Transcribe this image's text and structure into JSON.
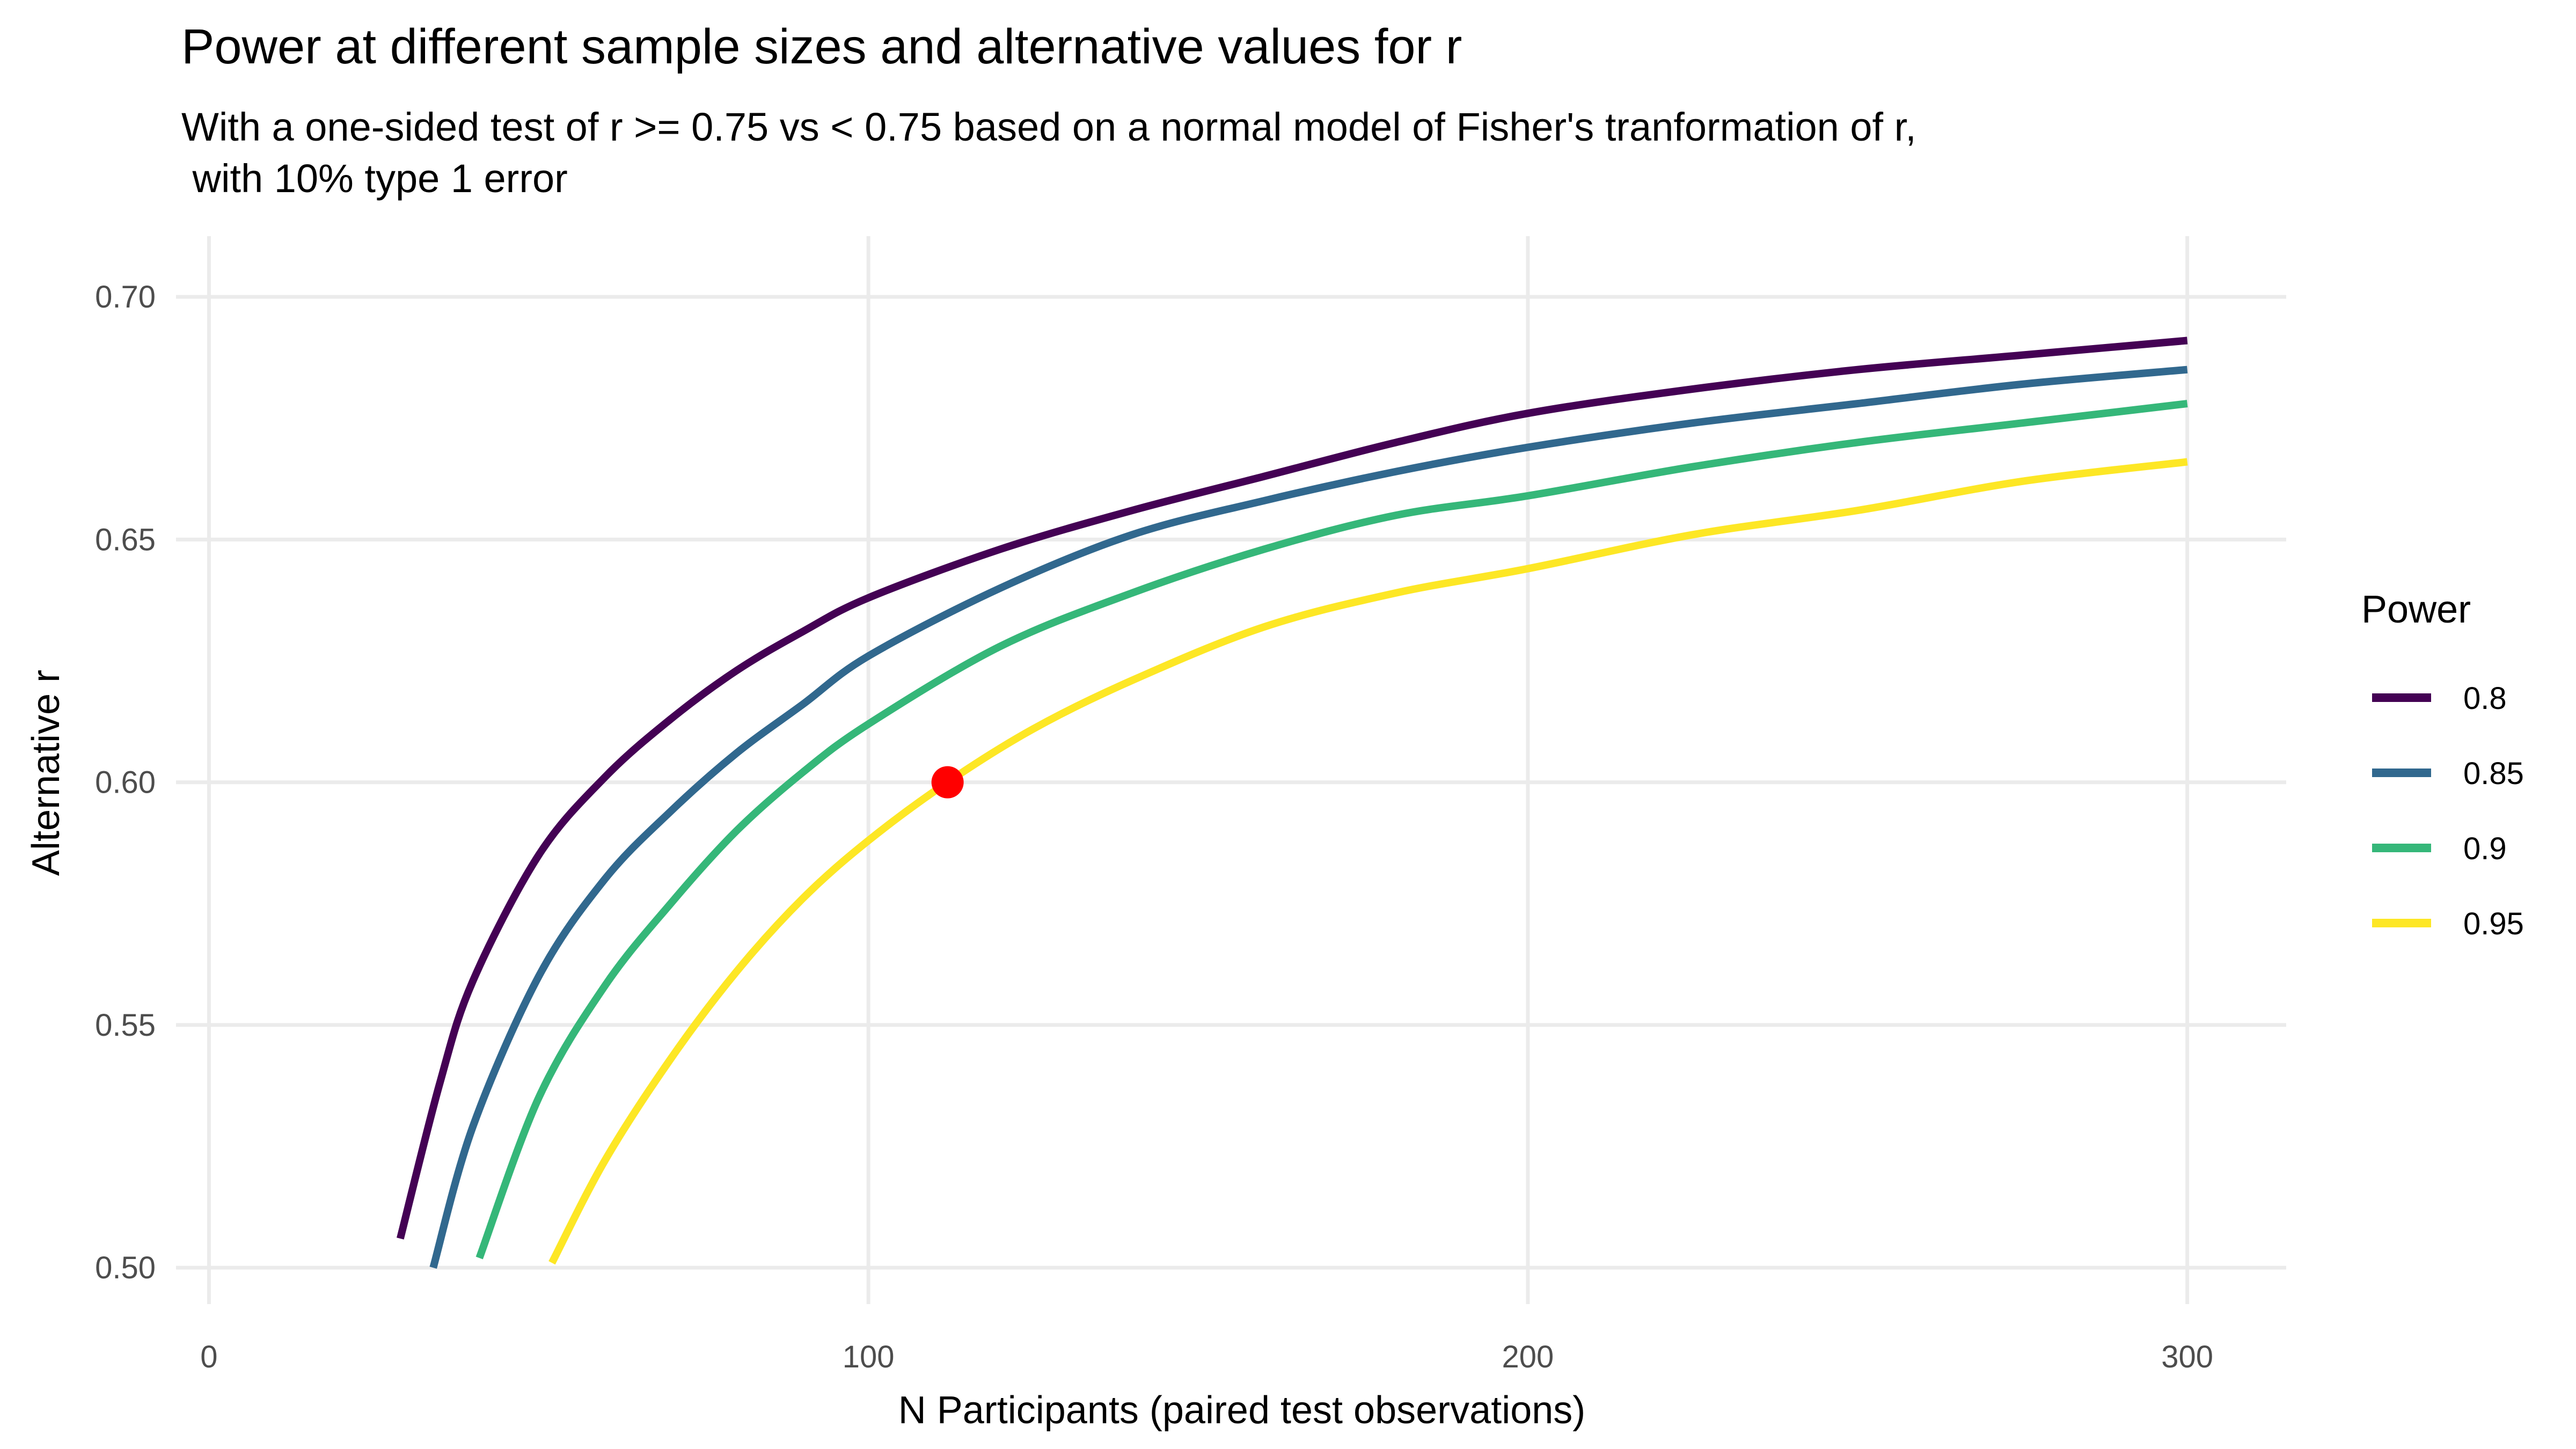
{
  "chart_data": {
    "type": "line",
    "title": "Power at different sample sizes and alternative values for r",
    "subtitle_lines": [
      "With a one-sided test of r >= 0.75 vs < 0.75 based on a normal model of Fisher's tranformation of r,",
      " with 10% type 1 error"
    ],
    "xlabel": "N Participants (paired test observations)",
    "ylabel": "Alternative r",
    "xlim": [
      -5,
      315
    ],
    "ylim": [
      0.4925,
      0.7125
    ],
    "x_ticks": [
      0,
      100,
      200,
      300
    ],
    "x_tick_labels": [
      "0",
      "100",
      "200",
      "300"
    ],
    "y_ticks": [
      0.5,
      0.55,
      0.6,
      0.65,
      0.7
    ],
    "y_tick_labels": [
      "0.50",
      "0.55",
      "0.60",
      "0.65",
      "0.70"
    ],
    "grid": true,
    "legend": {
      "title": "Power",
      "position": "right"
    },
    "series": [
      {
        "name": "0.8",
        "color": "#440154",
        "points": [
          [
            29,
            0.506
          ],
          [
            35,
            0.538
          ],
          [
            40,
            0.559
          ],
          [
            50,
            0.585
          ],
          [
            60,
            0.601
          ],
          [
            70,
            0.613
          ],
          [
            80,
            0.623
          ],
          [
            90,
            0.631
          ],
          [
            100,
            0.638
          ],
          [
            120,
            0.648
          ],
          [
            140,
            0.656
          ],
          [
            160,
            0.663
          ],
          [
            180,
            0.67
          ],
          [
            200,
            0.676
          ],
          [
            225,
            0.681
          ],
          [
            250,
            0.685
          ],
          [
            275,
            0.688
          ],
          [
            300,
            0.691
          ]
        ]
      },
      {
        "name": "0.85",
        "color": "#31688E",
        "points": [
          [
            34,
            0.5
          ],
          [
            40,
            0.529
          ],
          [
            50,
            0.56
          ],
          [
            60,
            0.58
          ],
          [
            70,
            0.594
          ],
          [
            80,
            0.606
          ],
          [
            90,
            0.616
          ],
          [
            100,
            0.626
          ],
          [
            120,
            0.64
          ],
          [
            140,
            0.651
          ],
          [
            160,
            0.658
          ],
          [
            180,
            0.664
          ],
          [
            200,
            0.669
          ],
          [
            225,
            0.674
          ],
          [
            250,
            0.678
          ],
          [
            275,
            0.682
          ],
          [
            300,
            0.685
          ]
        ]
      },
      {
        "name": "0.9",
        "color": "#35B779",
        "points": [
          [
            41,
            0.502
          ],
          [
            50,
            0.535
          ],
          [
            60,
            0.558
          ],
          [
            70,
            0.575
          ],
          [
            80,
            0.59
          ],
          [
            90,
            0.602
          ],
          [
            100,
            0.612
          ],
          [
            120,
            0.628
          ],
          [
            140,
            0.639
          ],
          [
            160,
            0.648
          ],
          [
            180,
            0.655
          ],
          [
            200,
            0.659
          ],
          [
            225,
            0.665
          ],
          [
            250,
            0.67
          ],
          [
            275,
            0.674
          ],
          [
            300,
            0.678
          ]
        ]
      },
      {
        "name": "0.95",
        "color": "#FDE725",
        "points": [
          [
            52,
            0.501
          ],
          [
            60,
            0.522
          ],
          [
            70,
            0.543
          ],
          [
            80,
            0.561
          ],
          [
            90,
            0.576
          ],
          [
            100,
            0.588
          ],
          [
            112,
            0.6
          ],
          [
            125,
            0.611
          ],
          [
            140,
            0.621
          ],
          [
            160,
            0.632
          ],
          [
            180,
            0.639
          ],
          [
            200,
            0.644
          ],
          [
            225,
            0.651
          ],
          [
            250,
            0.656
          ],
          [
            275,
            0.662
          ],
          [
            300,
            0.666
          ]
        ]
      }
    ],
    "highlight_point": {
      "x": 112,
      "y": 0.6,
      "color": "#FF0000"
    }
  }
}
